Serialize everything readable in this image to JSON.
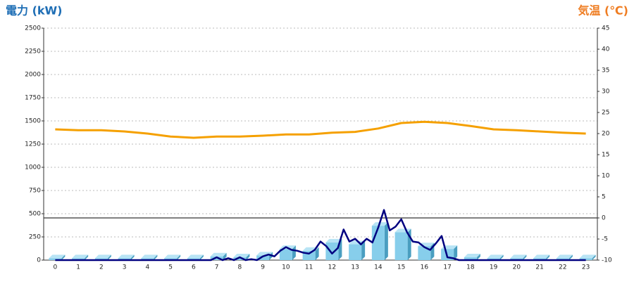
{
  "chart_data": {
    "type": "bar-line",
    "y_title": "電力 (kW)",
    "y2_title": "気温 (℃)",
    "categories": [
      "0",
      "1",
      "2",
      "3",
      "4",
      "5",
      "6",
      "7",
      "8",
      "9",
      "10",
      "11",
      "12",
      "13",
      "14",
      "15",
      "16",
      "17",
      "18",
      "19",
      "20",
      "21",
      "22",
      "23"
    ],
    "ylim": [
      0,
      2500
    ],
    "yticks": [
      0,
      250,
      500,
      750,
      1000,
      1250,
      1500,
      1750,
      2000,
      2250,
      2500
    ],
    "y2lim": [
      -10,
      45
    ],
    "y2ticks": [
      -10,
      -5,
      0,
      5,
      10,
      15,
      20,
      25,
      30,
      35,
      40,
      45
    ],
    "grid": true,
    "series": [
      {
        "type": "bar",
        "color": "#87ceeb",
        "values": [
          20,
          20,
          20,
          20,
          20,
          20,
          20,
          40,
          30,
          50,
          120,
          100,
          190,
          170,
          370,
          300,
          150,
          120,
          30,
          20,
          20,
          20,
          20,
          20
        ]
      },
      {
        "type": "line",
        "color": "#000080",
        "x": [
          0,
          1,
          2,
          3,
          4,
          5,
          6,
          6.75,
          7,
          7.25,
          7.5,
          7.75,
          8,
          8.25,
          8.5,
          8.75,
          9,
          9.25,
          9.5,
          9.75,
          10,
          10.25,
          10.5,
          10.75,
          11,
          11.25,
          11.5,
          11.75,
          12,
          12.25,
          12.5,
          12.75,
          13,
          13.25,
          13.5,
          13.75,
          14,
          14.25,
          14.5,
          14.75,
          15,
          15.25,
          15.5,
          15.75,
          16,
          16.25,
          16.5,
          16.75,
          17,
          17.25,
          17.5,
          17.75,
          18,
          19,
          20,
          21,
          22,
          23
        ],
        "values": [
          0,
          0,
          0,
          0,
          0,
          0,
          0,
          0,
          30,
          0,
          20,
          0,
          30,
          0,
          10,
          0,
          40,
          60,
          40,
          100,
          140,
          110,
          100,
          80,
          70,
          110,
          200,
          150,
          70,
          130,
          330,
          200,
          230,
          170,
          230,
          190,
          350,
          540,
          320,
          360,
          440,
          300,
          200,
          190,
          140,
          110,
          180,
          260,
          30,
          20,
          0,
          0,
          0,
          0,
          0,
          0,
          0,
          0
        ]
      },
      {
        "type": "line",
        "axis": "y2",
        "color": "#f5a000",
        "values": [
          21,
          20.8,
          20.8,
          20.5,
          20,
          19.3,
          19,
          19.3,
          19.3,
          19.5,
          19.8,
          19.8,
          20.2,
          20.4,
          21.2,
          22.5,
          22.8,
          22.5,
          21.8,
          21,
          20.8,
          20.5,
          20.2,
          20
        ]
      }
    ]
  }
}
